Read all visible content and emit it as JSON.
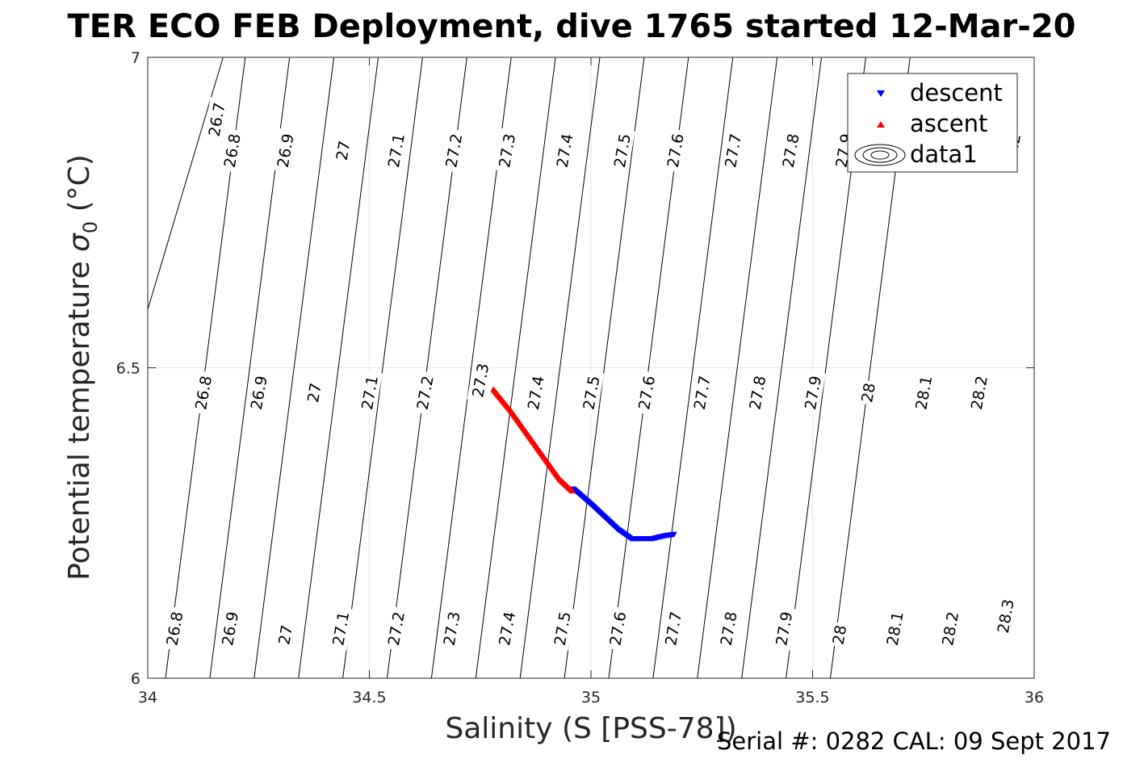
{
  "chart_data": {
    "type": "scatter",
    "title": "TER ECO FEB Deployment, dive 1765 started 12-Mar-20",
    "xlabel": "Salinity (S [PSS-78])",
    "ylabel_main": "Potential temperature ",
    "ylabel_sigma": "σ",
    "ylabel_sub": "0",
    "ylabel_unit": " (°C)",
    "xlim": [
      34,
      36
    ],
    "ylim": [
      6,
      7
    ],
    "x_ticks": [
      {
        "value": 34,
        "label": "34"
      },
      {
        "value": 34.5,
        "label": "34.5"
      },
      {
        "value": 35,
        "label": "35"
      },
      {
        "value": 35.5,
        "label": "35.5"
      },
      {
        "value": 36,
        "label": "36"
      }
    ],
    "y_ticks": [
      {
        "value": 6,
        "label": "6"
      },
      {
        "value": 6.5,
        "label": "6.5"
      },
      {
        "value": 7,
        "label": "7"
      }
    ],
    "grid": true,
    "legend_position": "top-right",
    "legend": [
      {
        "name": "descent",
        "marker": "triangle-down",
        "color": "#0000ff"
      },
      {
        "name": "ascent",
        "marker": "triangle-up",
        "color": "#ff0000"
      },
      {
        "name": "data1",
        "marker": "contour",
        "color": "#000000"
      }
    ],
    "series": [
      {
        "name": "descent",
        "color": "#0000ff",
        "marker": "triangle-down",
        "points": [
          [
            34.96,
            6.305
          ],
          [
            35.0,
            6.28
          ],
          [
            35.03,
            6.26
          ],
          [
            35.06,
            6.24
          ],
          [
            35.09,
            6.225
          ],
          [
            35.11,
            6.225
          ],
          [
            35.14,
            6.225
          ],
          [
            35.17,
            6.23
          ],
          [
            35.19,
            6.232
          ]
        ]
      },
      {
        "name": "ascent",
        "color": "#ff0000",
        "marker": "triangle-up",
        "points": [
          [
            34.78,
            6.465
          ],
          [
            34.82,
            6.43
          ],
          [
            34.86,
            6.39
          ],
          [
            34.9,
            6.35
          ],
          [
            34.93,
            6.32
          ],
          [
            34.96,
            6.3
          ]
        ]
      }
    ],
    "contour_levels": [
      26.7,
      26.8,
      26.9,
      27,
      27.1,
      27.2,
      27.3,
      27.4,
      27.5,
      27.6,
      27.7,
      27.8,
      27.9,
      28,
      28.1,
      28.2,
      28.3
    ],
    "contour_lines": [
      {
        "label": "26.7",
        "points": [
          [
            33.99,
            6.57
          ],
          [
            34.17,
            7.0
          ]
        ]
      },
      {
        "label": "26.8",
        "points": [
          [
            34.04,
            6.0
          ],
          [
            34.22,
            7.0
          ]
        ]
      },
      {
        "label": "26.9",
        "points": [
          [
            34.14,
            6.0
          ],
          [
            34.32,
            7.0
          ]
        ]
      },
      {
        "label": "27",
        "points": [
          [
            34.24,
            6.0
          ],
          [
            34.42,
            7.0
          ]
        ]
      },
      {
        "label": "27.1",
        "points": [
          [
            34.34,
            6.0
          ],
          [
            34.52,
            7.0
          ]
        ]
      },
      {
        "label": "27.2",
        "points": [
          [
            34.44,
            6.0
          ],
          [
            34.62,
            7.0
          ]
        ]
      },
      {
        "label": "27.3",
        "points": [
          [
            34.54,
            6.0
          ],
          [
            34.72,
            7.0
          ]
        ]
      },
      {
        "label": "27.4",
        "points": [
          [
            34.64,
            6.0
          ],
          [
            34.82,
            7.0
          ]
        ]
      },
      {
        "label": "27.5",
        "points": [
          [
            34.74,
            6.0
          ],
          [
            34.92,
            7.0
          ]
        ]
      },
      {
        "label": "27.6",
        "points": [
          [
            34.84,
            6.0
          ],
          [
            35.02,
            7.0
          ]
        ]
      },
      {
        "label": "27.7",
        "points": [
          [
            34.94,
            6.0
          ],
          [
            35.12,
            7.0
          ]
        ]
      },
      {
        "label": "27.8",
        "points": [
          [
            35.04,
            6.0
          ],
          [
            35.22,
            7.0
          ]
        ]
      },
      {
        "label": "27.9",
        "points": [
          [
            35.14,
            6.0
          ],
          [
            35.32,
            7.0
          ]
        ]
      },
      {
        "label": "28",
        "points": [
          [
            35.24,
            6.0
          ],
          [
            35.42,
            7.0
          ]
        ]
      },
      {
        "label": "28.1",
        "points": [
          [
            35.34,
            6.0
          ],
          [
            35.52,
            7.0
          ]
        ]
      },
      {
        "label": "28.2",
        "points": [
          [
            35.44,
            6.0
          ],
          [
            35.62,
            7.0
          ]
        ]
      },
      {
        "label": "28.3",
        "points": [
          [
            35.54,
            6.0
          ],
          [
            35.72,
            7.0
          ]
        ]
      }
    ],
    "contour_line_labels": [
      {
        "text": "26.7",
        "x": 34.155,
        "y": 6.9
      },
      {
        "text": "26.8",
        "x": 34.19,
        "y": 6.85
      },
      {
        "text": "26.9",
        "x": 34.31,
        "y": 6.85
      },
      {
        "text": "27",
        "x": 34.44,
        "y": 6.85
      },
      {
        "text": "27.1",
        "x": 34.56,
        "y": 6.85
      },
      {
        "text": "27.2",
        "x": 34.69,
        "y": 6.85
      },
      {
        "text": "27.3",
        "x": 34.81,
        "y": 6.85
      },
      {
        "text": "27.4",
        "x": 34.94,
        "y": 6.85
      },
      {
        "text": "27.5",
        "x": 35.07,
        "y": 6.85
      },
      {
        "text": "27.6",
        "x": 35.19,
        "y": 6.85
      },
      {
        "text": "27.7",
        "x": 35.32,
        "y": 6.85
      },
      {
        "text": "27.8",
        "x": 35.45,
        "y": 6.85
      },
      {
        "text": "27.9",
        "x": 35.57,
        "y": 6.85
      },
      {
        "text": "28.2",
        "x": 35.95,
        "y": 6.85
      },
      {
        "text": "26.8",
        "x": 34.125,
        "y": 6.46
      },
      {
        "text": "26.9",
        "x": 34.25,
        "y": 6.46
      },
      {
        "text": "27",
        "x": 34.375,
        "y": 6.46
      },
      {
        "text": "27.1",
        "x": 34.5,
        "y": 6.46
      },
      {
        "text": "27.2",
        "x": 34.625,
        "y": 6.46
      },
      {
        "text": "27.3",
        "x": 34.75,
        "y": 6.48
      },
      {
        "text": "27.4",
        "x": 34.875,
        "y": 6.46
      },
      {
        "text": "27.5",
        "x": 35.0,
        "y": 6.46
      },
      {
        "text": "27.6",
        "x": 35.125,
        "y": 6.46
      },
      {
        "text": "27.7",
        "x": 35.25,
        "y": 6.46
      },
      {
        "text": "27.8",
        "x": 35.375,
        "y": 6.46
      },
      {
        "text": "27.9",
        "x": 35.5,
        "y": 6.46
      },
      {
        "text": "28",
        "x": 35.625,
        "y": 6.46
      },
      {
        "text": "28.1",
        "x": 35.75,
        "y": 6.46
      },
      {
        "text": "28.2",
        "x": 35.875,
        "y": 6.46
      },
      {
        "text": "26.8",
        "x": 34.06,
        "y": 6.08
      },
      {
        "text": "26.9",
        "x": 34.185,
        "y": 6.08
      },
      {
        "text": "27",
        "x": 34.31,
        "y": 6.07
      },
      {
        "text": "27.1",
        "x": 34.435,
        "y": 6.08
      },
      {
        "text": "27.2",
        "x": 34.56,
        "y": 6.08
      },
      {
        "text": "27.3",
        "x": 34.685,
        "y": 6.08
      },
      {
        "text": "27.4",
        "x": 34.81,
        "y": 6.08
      },
      {
        "text": "27.5",
        "x": 34.935,
        "y": 6.08
      },
      {
        "text": "27.6",
        "x": 35.06,
        "y": 6.08
      },
      {
        "text": "27.7",
        "x": 35.185,
        "y": 6.08
      },
      {
        "text": "27.8",
        "x": 35.31,
        "y": 6.08
      },
      {
        "text": "27.9",
        "x": 35.435,
        "y": 6.08
      },
      {
        "text": "28",
        "x": 35.56,
        "y": 6.07
      },
      {
        "text": "28.1",
        "x": 35.685,
        "y": 6.08
      },
      {
        "text": "28.2",
        "x": 35.81,
        "y": 6.08
      },
      {
        "text": "28.3",
        "x": 35.935,
        "y": 6.1
      }
    ]
  },
  "footer": {
    "serial": "Serial #: 0282  CAL: 09 Sept 2017"
  }
}
